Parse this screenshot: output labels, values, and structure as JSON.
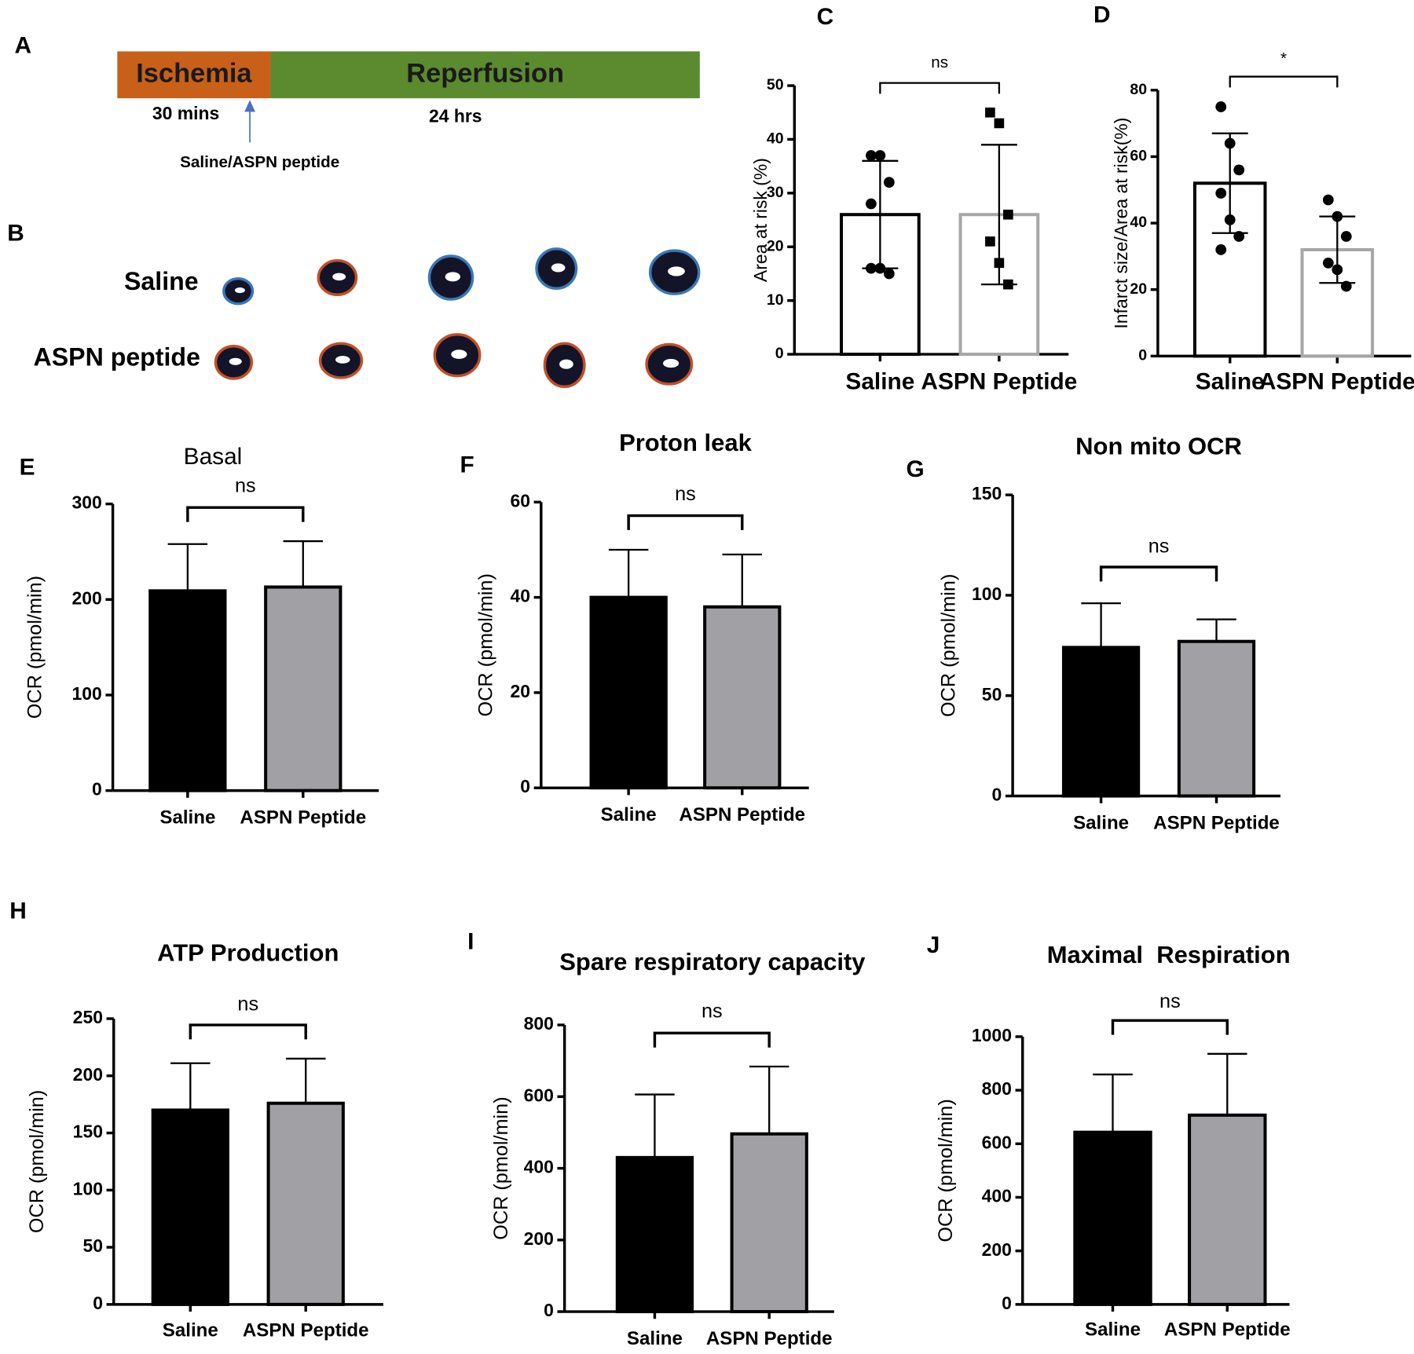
{
  "panel_a": {
    "label": "A",
    "phases": [
      "Ischemia",
      "Reperfusion"
    ],
    "durations": [
      "30 mins",
      "24 hrs"
    ],
    "treatment": "Saline/ASPN peptide"
  },
  "panel_b": {
    "label": "B",
    "rows": [
      "Saline",
      "ASPN peptide"
    ]
  },
  "chart_data": [
    {
      "type": "bar",
      "panel": "C",
      "ylabel": "Area at risk (%)",
      "categories": [
        "Saline",
        "ASPN Peptide"
      ],
      "values": [
        26,
        26
      ],
      "errors": [
        10,
        13
      ],
      "error_style": "both",
      "points": [
        [
          37,
          37,
          32,
          28,
          16,
          15,
          16
        ],
        [
          45,
          43,
          26,
          21,
          17,
          13
        ]
      ],
      "markers": [
        "circle",
        "square"
      ],
      "point_color": "#000000",
      "bar_fill": [
        "#ffffff",
        "#ffffff"
      ],
      "bar_edge": [
        "#000000",
        "#a6a6a6"
      ],
      "annotation": "ns",
      "ylim": [
        0,
        50
      ],
      "yticks": [
        0,
        10,
        20,
        30,
        40,
        50
      ]
    },
    {
      "type": "bar",
      "panel": "D",
      "ylabel": "Infarct size/Area at risk(%)",
      "categories": [
        "Saline",
        "ASPN Peptide"
      ],
      "values": [
        52,
        32
      ],
      "errors": [
        15,
        10
      ],
      "error_style": "both",
      "points": [
        [
          75,
          64,
          56,
          49,
          41,
          36,
          32
        ],
        [
          47,
          42,
          36,
          28,
          26,
          21
        ]
      ],
      "markers": [
        "circle",
        "circle"
      ],
      "point_color": "#000000",
      "bar_fill": [
        "#ffffff",
        "#ffffff"
      ],
      "bar_edge": [
        "#000000",
        "#a6a6a6"
      ],
      "annotation": "*",
      "ylim": [
        0,
        80
      ],
      "yticks": [
        0,
        20,
        40,
        60,
        80
      ]
    },
    {
      "type": "bar",
      "panel": "E",
      "title": "Basal",
      "ylabel": "OCR (pmol/min)",
      "categories": [
        "Saline",
        "ASPN Peptide"
      ],
      "values": [
        209,
        213
      ],
      "errors": [
        49,
        48
      ],
      "error_style": "up",
      "bar_fill": [
        "#000000",
        "#a1a1a5"
      ],
      "bar_edge": [
        "#000000",
        "#000000"
      ],
      "annotation": "ns",
      "ylim": [
        0,
        300
      ],
      "yticks": [
        0,
        100,
        200,
        300
      ]
    },
    {
      "type": "bar",
      "panel": "F",
      "title": "Proton leak",
      "ylabel": "OCR (pmol/min)",
      "categories": [
        "Saline",
        "ASPN Peptide"
      ],
      "values": [
        40,
        38
      ],
      "errors": [
        10,
        11
      ],
      "error_style": "up",
      "bar_fill": [
        "#000000",
        "#a1a1a5"
      ],
      "bar_edge": [
        "#000000",
        "#000000"
      ],
      "annotation": "ns",
      "ylim": [
        0,
        60
      ],
      "yticks": [
        0,
        20,
        40,
        60
      ]
    },
    {
      "type": "bar",
      "panel": "G",
      "title": "Non mito OCR",
      "ylabel": "OCR (pmol/min)",
      "categories": [
        "Saline",
        "ASPN Peptide"
      ],
      "values": [
        74,
        77
      ],
      "errors": [
        22,
        11
      ],
      "error_style": "up",
      "bar_fill": [
        "#000000",
        "#a1a1a5"
      ],
      "bar_edge": [
        "#000000",
        "#000000"
      ],
      "annotation": "ns",
      "ylim": [
        0,
        150
      ],
      "yticks": [
        0,
        50,
        100,
        150
      ]
    },
    {
      "type": "bar",
      "panel": "H",
      "title": "ATP Production",
      "ylabel": "OCR (pmol/min)",
      "categories": [
        "Saline",
        "ASPN Peptide"
      ],
      "values": [
        170,
        176
      ],
      "errors": [
        41,
        39
      ],
      "error_style": "up",
      "bar_fill": [
        "#000000",
        "#a1a1a5"
      ],
      "bar_edge": [
        "#000000",
        "#000000"
      ],
      "annotation": "ns",
      "ylim": [
        0,
        250
      ],
      "yticks": [
        0,
        50,
        100,
        150,
        200,
        250
      ]
    },
    {
      "type": "bar",
      "panel": "I",
      "title": "Spare respiratory capacity",
      "ylabel": "OCR (pmol/min)",
      "categories": [
        "Saline",
        "ASPN Peptide"
      ],
      "values": [
        430,
        496
      ],
      "errors": [
        176,
        188
      ],
      "error_style": "up",
      "bar_fill": [
        "#000000",
        "#a1a1a5"
      ],
      "bar_edge": [
        "#000000",
        "#000000"
      ],
      "annotation": "ns",
      "ylim": [
        0,
        800
      ],
      "yticks": [
        0,
        200,
        400,
        600,
        800
      ]
    },
    {
      "type": "bar",
      "panel": "J",
      "title": "Maximal  Respiration",
      "ylabel": "OCR (pmol/min)",
      "categories": [
        "Saline",
        "ASPN Peptide"
      ],
      "values": [
        643,
        707
      ],
      "errors": [
        216,
        229
      ],
      "error_style": "up",
      "bar_fill": [
        "#000000",
        "#a1a1a5"
      ],
      "bar_edge": [
        "#000000",
        "#000000"
      ],
      "annotation": "ns",
      "ylim": [
        0,
        1000
      ],
      "yticks": [
        0,
        200,
        400,
        600,
        800,
        1000
      ]
    }
  ]
}
